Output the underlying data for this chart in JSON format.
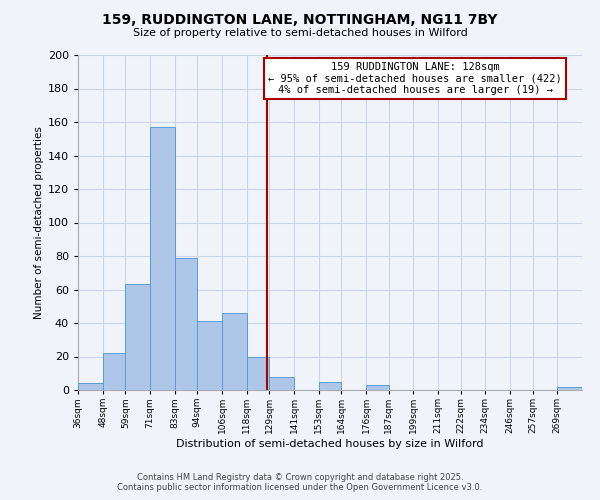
{
  "title": "159, RUDDINGTON LANE, NOTTINGHAM, NG11 7BY",
  "subtitle": "Size of property relative to semi-detached houses in Wilford",
  "xlabel": "Distribution of semi-detached houses by size in Wilford",
  "ylabel": "Number of semi-detached properties",
  "bin_labels": [
    "36sqm",
    "48sqm",
    "59sqm",
    "71sqm",
    "83sqm",
    "94sqm",
    "106sqm",
    "118sqm",
    "129sqm",
    "141sqm",
    "153sqm",
    "164sqm",
    "176sqm",
    "187sqm",
    "199sqm",
    "211sqm",
    "222sqm",
    "234sqm",
    "246sqm",
    "257sqm",
    "269sqm"
  ],
  "bin_edges": [
    36,
    48,
    59,
    71,
    83,
    94,
    106,
    118,
    129,
    141,
    153,
    164,
    176,
    187,
    199,
    211,
    222,
    234,
    246,
    257,
    269,
    281
  ],
  "counts": [
    4,
    22,
    63,
    157,
    79,
    41,
    46,
    20,
    8,
    0,
    5,
    0,
    3,
    0,
    0,
    0,
    0,
    0,
    0,
    0,
    2
  ],
  "bar_color": "#aec6e8",
  "bar_edge_color": "#5b9bd5",
  "vline_x": 128,
  "vline_color": "#aa0000",
  "annotation_title": "159 RUDDINGTON LANE: 128sqm",
  "annotation_line1": "← 95% of semi-detached houses are smaller (422)",
  "annotation_line2": "4% of semi-detached houses are larger (19) →",
  "annotation_box_color": "#ffffff",
  "annotation_box_edge": "#aa0000",
  "ylim": [
    0,
    200
  ],
  "yticks": [
    0,
    20,
    40,
    60,
    80,
    100,
    120,
    140,
    160,
    180,
    200
  ],
  "background_color": "#f0f4fa",
  "grid_color": "#c8d4e8",
  "footer1": "Contains HM Land Registry data © Crown copyright and database right 2025.",
  "footer2": "Contains public sector information licensed under the Open Government Licence v3.0."
}
